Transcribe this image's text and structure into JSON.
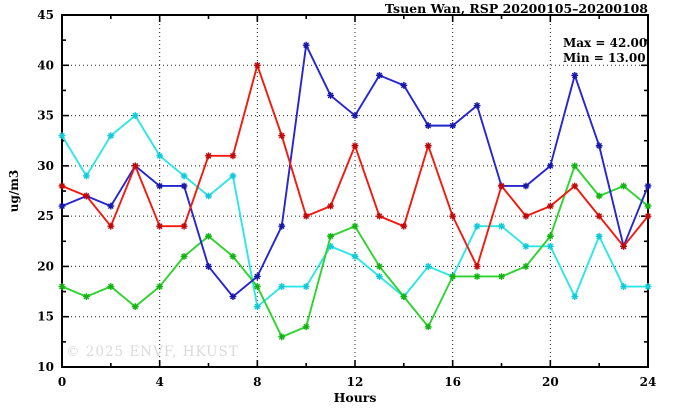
{
  "title": "Tsuen Wan, RSP 20200105–20200108",
  "annotation": {
    "max_label": "Max = 42.00",
    "min_label": "Min = 13.00"
  },
  "watermark": "© 2025 ENVF, HKUST",
  "chart_data": {
    "type": "line",
    "title": "Tsuen Wan, RSP 20200105–20200108",
    "xlabel": "Hours",
    "ylabel": "ug/m3",
    "xlim": [
      0,
      24
    ],
    "ylim": [
      10,
      45
    ],
    "grid": true,
    "legend": "none",
    "x_major_ticks": [
      0,
      4,
      8,
      12,
      16,
      20,
      24
    ],
    "x_minor_ticks": [
      2,
      6,
      10,
      14,
      18,
      22
    ],
    "y_major_ticks": [
      10,
      15,
      20,
      25,
      30,
      35,
      40,
      45
    ],
    "y_minor_ticks": [
      12.5,
      17.5,
      22.5,
      27.5,
      32.5,
      37.5,
      42.5
    ],
    "x_gridlines": [
      4,
      8,
      12,
      16,
      20
    ],
    "y_gridlines": [
      15,
      20,
      25,
      30,
      35,
      40
    ],
    "x": [
      0,
      1,
      2,
      3,
      4,
      5,
      6,
      7,
      8,
      9,
      10,
      11,
      12,
      13,
      14,
      15,
      16,
      17,
      18,
      19,
      20,
      21,
      22,
      23,
      24
    ],
    "series": [
      {
        "name": "cyan",
        "color": "#2ee6e6",
        "marker_color": "#12c9d8",
        "values": [
          33,
          29,
          33,
          35,
          31,
          29,
          27,
          29,
          16,
          18,
          18,
          22,
          21,
          19,
          17,
          20,
          19,
          24,
          24,
          22,
          22,
          17,
          23,
          18,
          18
        ]
      },
      {
        "name": "green",
        "color": "#2fd32f",
        "marker_color": "#12b312",
        "values": [
          18,
          17,
          18,
          16,
          18,
          21,
          23,
          21,
          18,
          13,
          14,
          23,
          24,
          20,
          17,
          14,
          19,
          19,
          19,
          20,
          23,
          30,
          27,
          28,
          26
        ]
      },
      {
        "name": "blue",
        "color": "#2626d0",
        "marker_color": "#1818a8",
        "values": [
          26,
          27,
          26,
          30,
          28,
          28,
          20,
          17,
          19,
          24,
          42,
          37,
          35,
          39,
          38,
          34,
          34,
          36,
          28,
          28,
          30,
          39,
          32,
          22,
          28
        ]
      },
      {
        "name": "red",
        "color": "#f2190f",
        "marker_color": "#c00808",
        "values": [
          28,
          27,
          24,
          30,
          24,
          24,
          31,
          31,
          40,
          33,
          25,
          26,
          32,
          25,
          24,
          32,
          25,
          20,
          28,
          25,
          26,
          28,
          25,
          22,
          25
        ]
      }
    ],
    "stats": {
      "max": 42.0,
      "min": 13.0
    }
  }
}
